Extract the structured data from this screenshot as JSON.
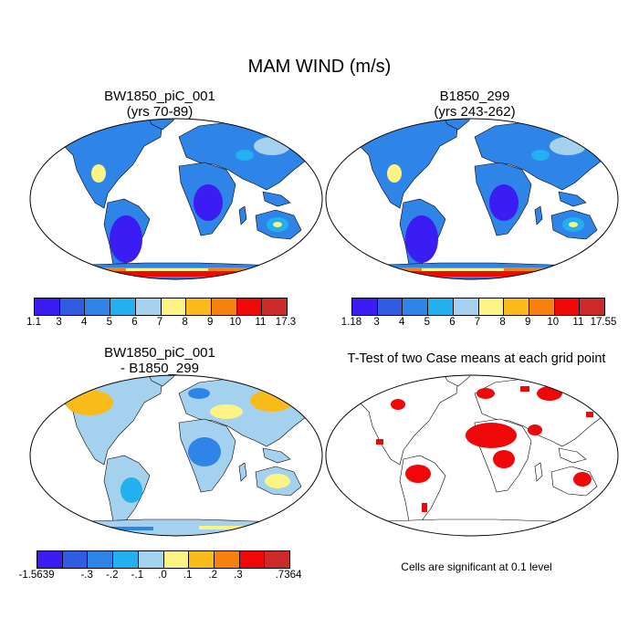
{
  "title": "MAM WIND (m/s)",
  "panels": {
    "top_left": {
      "title_line1": "BW1850_piC_001",
      "title_line2": "(yrs 70-89)"
    },
    "top_right": {
      "title_line1": "B1850_299",
      "title_line2": "(yrs 243-262)"
    },
    "bottom_left": {
      "title_line1": "BW1850_piC_001",
      "title_line2": "- B1850_299"
    },
    "bottom_right": {
      "title_line1": "T-Test of two Case means at each grid point",
      "note": "Cells are significant at 0.1 level"
    }
  },
  "colorbars": {
    "top_left": {
      "colors": [
        "#3b1cf2",
        "#2f5ce0",
        "#2f84e8",
        "#23b0ef",
        "#a4d2ee",
        "#fdf385",
        "#f9bb1a",
        "#f7810d",
        "#f00808",
        "#cc2a2a"
      ],
      "labels": [
        "1.1",
        "3",
        "4",
        "5",
        "6",
        "7",
        "8",
        "9",
        "10",
        "11",
        "17.3"
      ]
    },
    "top_right": {
      "colors": [
        "#3b1cf2",
        "#2f5ce0",
        "#2f84e8",
        "#23b0ef",
        "#a4d2ee",
        "#fdf385",
        "#f9bb1a",
        "#f7810d",
        "#f00808",
        "#cc2a2a"
      ],
      "labels": [
        "1.18",
        "3",
        "4",
        "5",
        "6",
        "7",
        "8",
        "9",
        "10",
        "11",
        "17.55"
      ]
    },
    "bottom_left": {
      "colors": [
        "#3b1cf2",
        "#2f5ce0",
        "#2f84e8",
        "#23b0ef",
        "#a4d2ee",
        "#fdf385",
        "#f9bb1a",
        "#f7810d",
        "#f00808",
        "#cc2a2a"
      ],
      "labels": [
        "-1.5639",
        "",
        "-.3",
        "-.2",
        "-.1",
        ".0",
        ".1",
        ".2",
        ".3",
        "",
        ".7364"
      ]
    }
  }
}
